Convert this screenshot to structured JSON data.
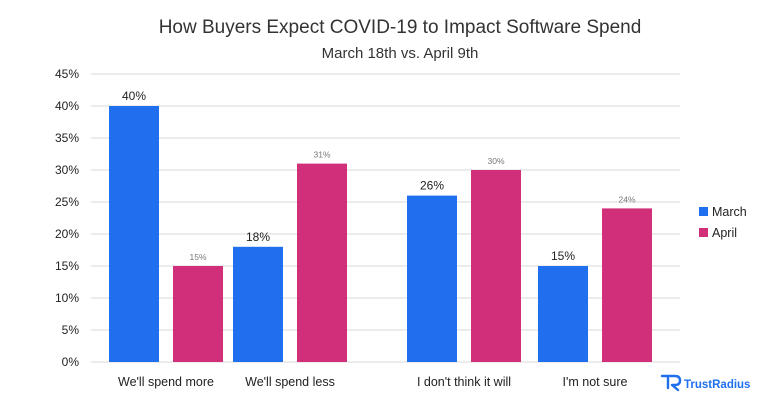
{
  "chart_data": {
    "type": "bar",
    "title": "How Buyers Expect COVID-19 to Impact Software Spend",
    "subtitle": "March 18th vs. April 9th",
    "xlabel": "",
    "ylabel": "",
    "ylim": [
      0,
      45
    ],
    "y_ticks": [
      0,
      5,
      10,
      15,
      20,
      25,
      30,
      35,
      40,
      45
    ],
    "y_tick_suffix": "%",
    "grid": true,
    "legend_position": "right",
    "categories": [
      "We'll spend more",
      "We'll spend less",
      "I don't think it will",
      "I'm not sure"
    ],
    "series": [
      {
        "name": "March",
        "color": "#1f6fef",
        "values": [
          40,
          18,
          26,
          15
        ],
        "labels": [
          "40%",
          "18%",
          "26%",
          "15%"
        ]
      },
      {
        "name": "April",
        "color": "#d12f7a",
        "values": [
          15,
          31,
          30,
          24
        ],
        "labels": [
          "15%",
          "31%",
          "30%",
          "24%"
        ]
      }
    ]
  },
  "branding": {
    "logo_text": "TrustRadius",
    "logo_color": "#1f6fef"
  },
  "colors": {
    "grid": "#d9d9d9",
    "text": "#222222",
    "small_label": "#777777"
  }
}
